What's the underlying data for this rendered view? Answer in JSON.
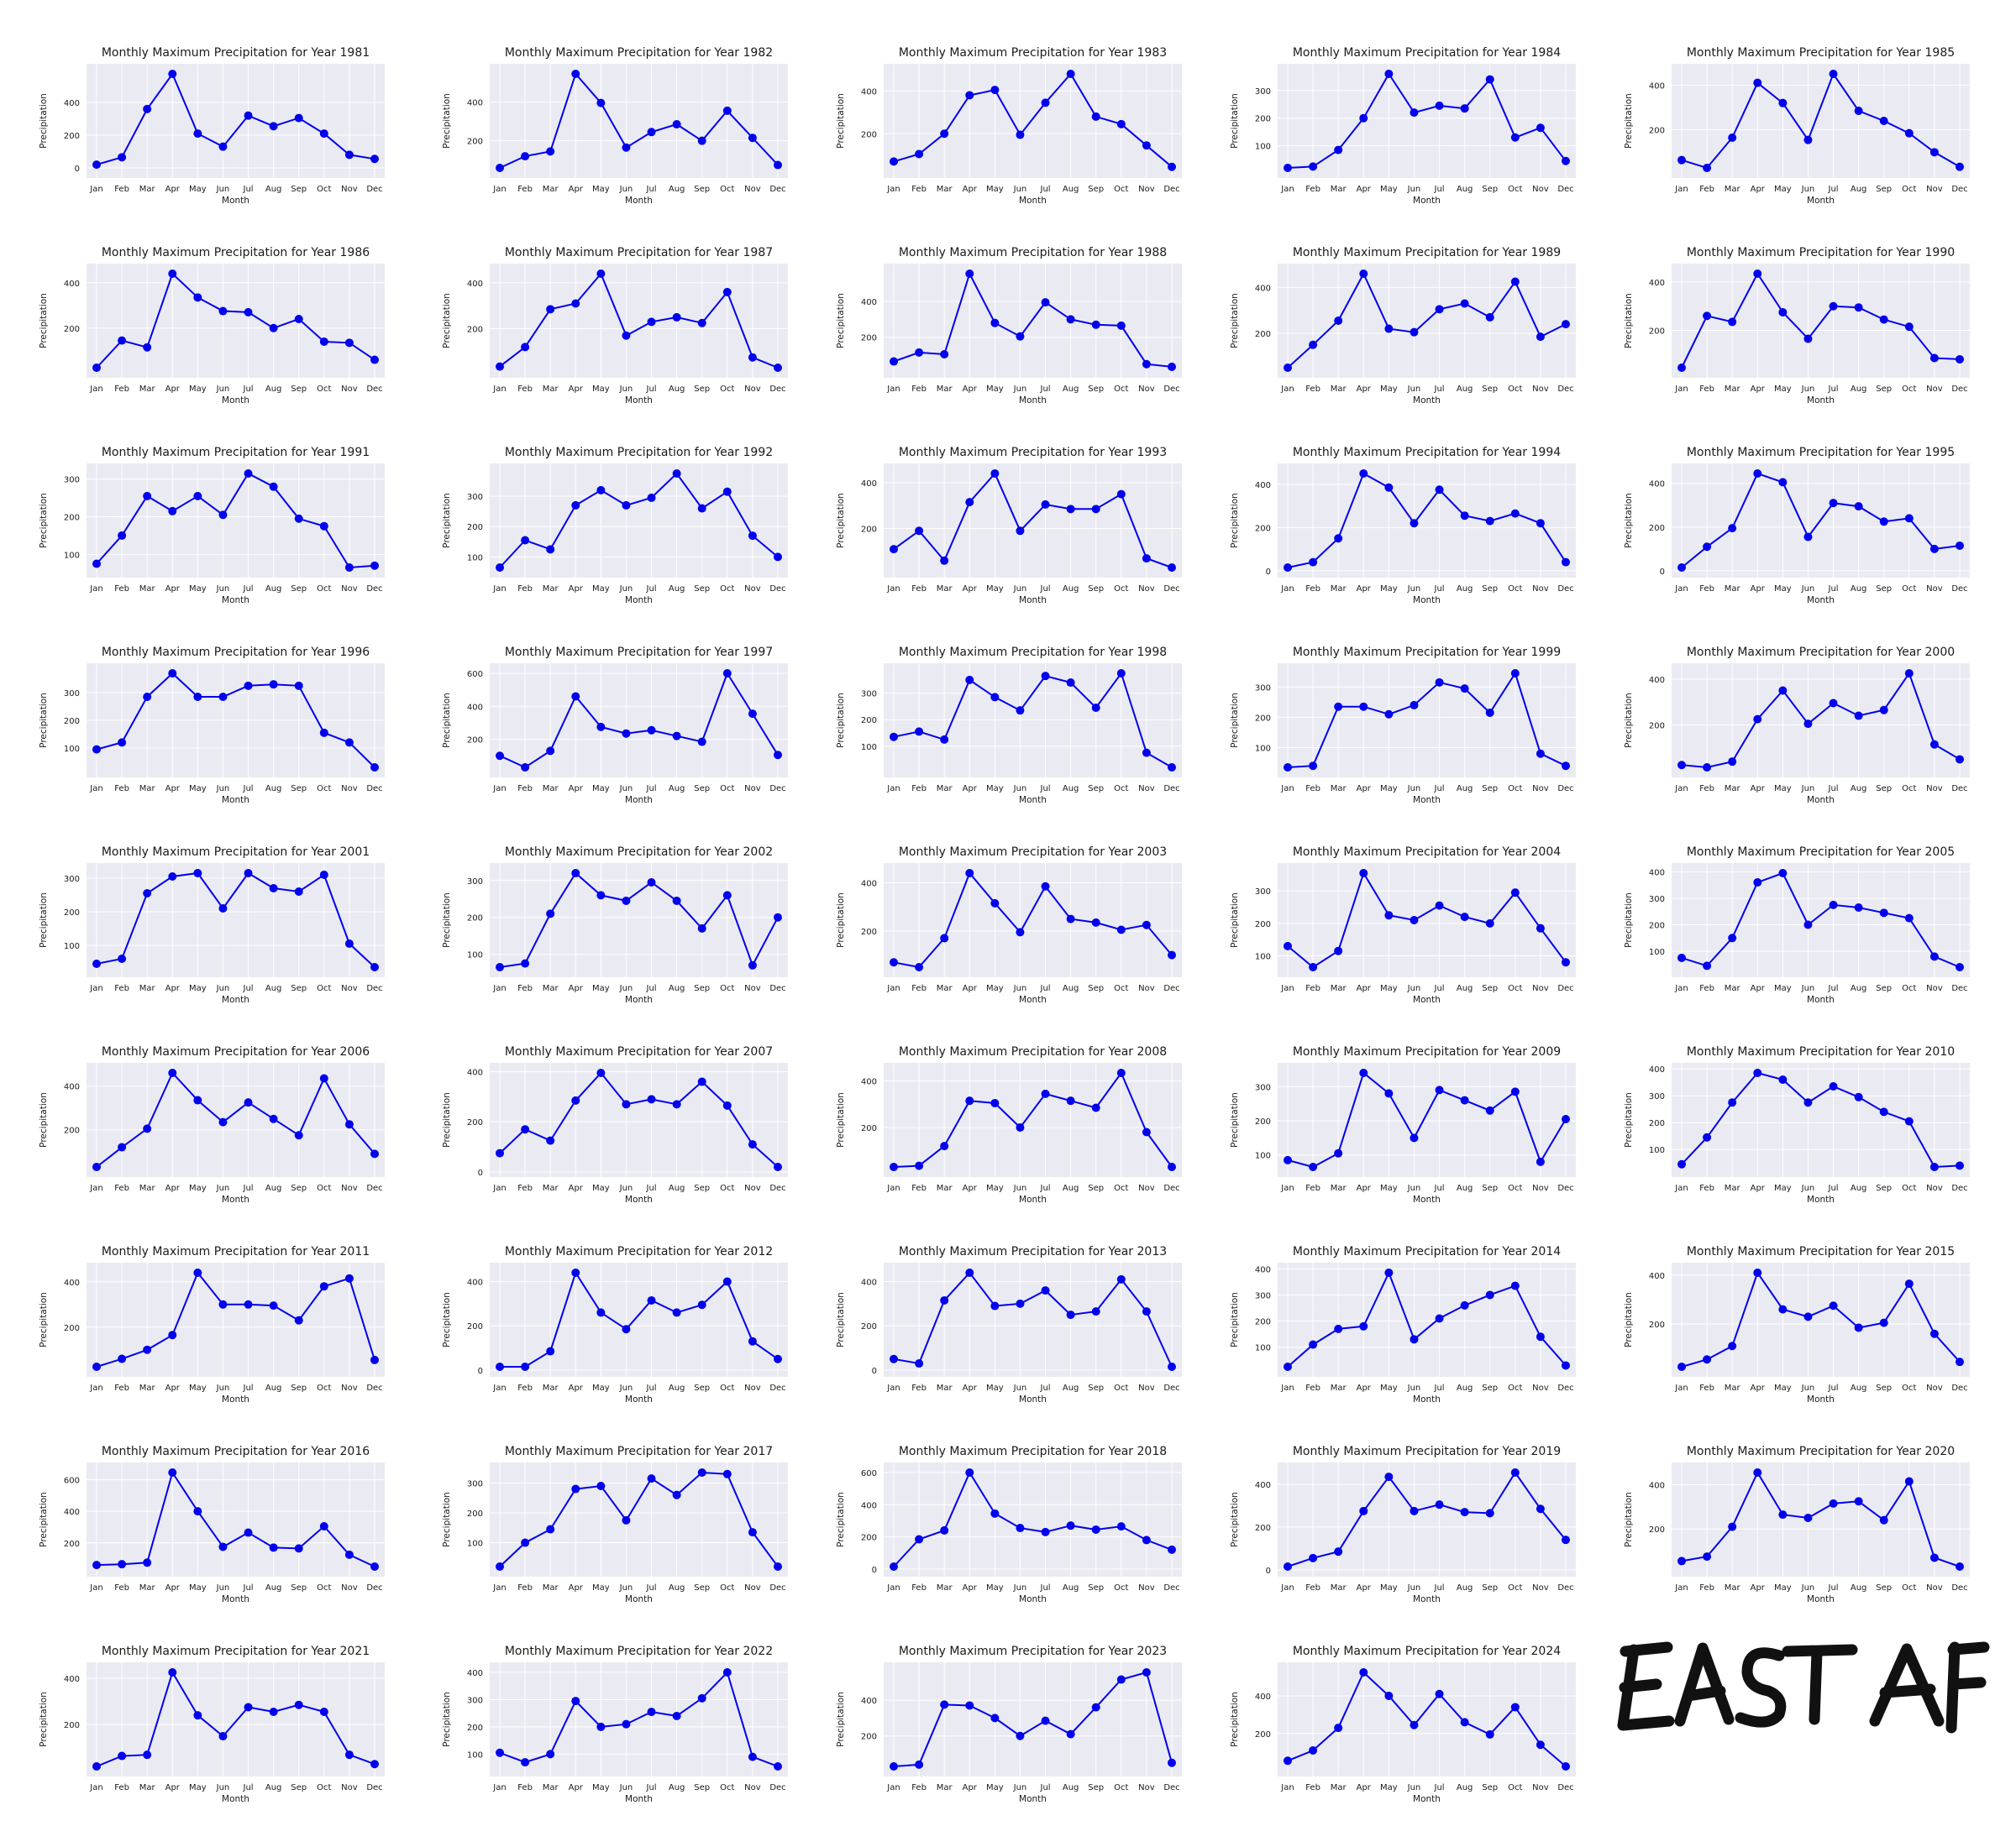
{
  "figure": {
    "handwritten_note": "EAST AF"
  },
  "chart_data": {
    "type": "line",
    "months": [
      "Jan",
      "Feb",
      "Mar",
      "Apr",
      "May",
      "Jun",
      "Jul",
      "Aug",
      "Sep",
      "Oct",
      "Nov",
      "Dec"
    ],
    "xlabel": "Month",
    "ylabel": "Precipitation",
    "title_template": "Monthly Maximum Precipitation for Year {year}",
    "grid": true,
    "series_color": "#0000ee",
    "panel_background": "#eaeaf2",
    "subplots": [
      {
        "year": 1981,
        "title": "Monthly Maximum Precipitation for Year 1981",
        "ylim": [
          0,
          575
        ],
        "yticks": [
          0,
          200,
          400
        ],
        "values": [
          20,
          65,
          360,
          575,
          210,
          130,
          320,
          255,
          305,
          210,
          80,
          55
        ]
      },
      {
        "year": 1982,
        "title": "Monthly Maximum Precipitation for Year 1982",
        "ylim": [
          60,
          545
        ],
        "yticks": [
          200,
          400
        ],
        "values": [
          60,
          120,
          145,
          545,
          395,
          165,
          245,
          285,
          200,
          355,
          215,
          75
        ]
      },
      {
        "year": 1983,
        "title": "Monthly Maximum Precipitation for Year 1983",
        "ylim": [
          40,
          480
        ],
        "yticks": [
          200,
          400
        ],
        "values": [
          70,
          105,
          200,
          380,
          405,
          195,
          345,
          480,
          280,
          245,
          145,
          45
        ]
      },
      {
        "year": 1984,
        "title": "Monthly Maximum Precipitation for Year 1984",
        "ylim": [
          20,
          360
        ],
        "yticks": [
          100,
          200,
          300
        ],
        "values": [
          20,
          25,
          85,
          200,
          360,
          220,
          245,
          235,
          340,
          130,
          165,
          45
        ]
      },
      {
        "year": 1985,
        "title": "Monthly Maximum Precipitation for Year 1985",
        "ylim": [
          30,
          450
        ],
        "yticks": [
          200,
          400
        ],
        "values": [
          65,
          30,
          165,
          410,
          320,
          155,
          450,
          285,
          240,
          185,
          100,
          35
        ]
      },
      {
        "year": 1986,
        "title": "Monthly Maximum Precipitation for Year 1986",
        "ylim": [
          25,
          440
        ],
        "yticks": [
          200,
          400
        ],
        "values": [
          25,
          145,
          115,
          440,
          335,
          275,
          270,
          200,
          240,
          140,
          135,
          60
        ]
      },
      {
        "year": 1987,
        "title": "Monthly Maximum Precipitation for Year 1987",
        "ylim": [
          30,
          440
        ],
        "yticks": [
          200,
          400
        ],
        "values": [
          35,
          120,
          285,
          310,
          440,
          170,
          230,
          250,
          225,
          360,
          75,
          30
        ]
      },
      {
        "year": 1988,
        "title": "Monthly Maximum Precipitation for Year 1988",
        "ylim": [
          30,
          555
        ],
        "yticks": [
          200,
          400
        ],
        "values": [
          65,
          115,
          105,
          555,
          280,
          205,
          395,
          300,
          270,
          265,
          50,
          35
        ]
      },
      {
        "year": 1989,
        "title": "Monthly Maximum Precipitation for Year 1989",
        "ylim": [
          50,
          460
        ],
        "yticks": [
          200,
          400
        ],
        "values": [
          50,
          150,
          255,
          460,
          220,
          205,
          305,
          330,
          270,
          425,
          185,
          240
        ]
      },
      {
        "year": 1990,
        "title": "Monthly Maximum Precipitation for Year 1990",
        "ylim": [
          45,
          435
        ],
        "yticks": [
          200,
          400
        ],
        "values": [
          45,
          260,
          235,
          435,
          275,
          165,
          300,
          295,
          245,
          215,
          85,
          80
        ]
      },
      {
        "year": 1991,
        "title": "Monthly Maximum Precipitation for Year 1991",
        "ylim": [
          65,
          315
        ],
        "yticks": [
          100,
          200,
          300
        ],
        "values": [
          75,
          150,
          255,
          215,
          255,
          205,
          315,
          280,
          195,
          175,
          65,
          70
        ]
      },
      {
        "year": 1992,
        "title": "Monthly Maximum Precipitation for Year 1992",
        "ylim": [
          65,
          375
        ],
        "yticks": [
          100,
          200,
          300
        ],
        "values": [
          65,
          155,
          125,
          270,
          320,
          270,
          295,
          375,
          260,
          315,
          170,
          100
        ]
      },
      {
        "year": 1993,
        "title": "Monthly Maximum Precipitation for Year 1993",
        "ylim": [
          30,
          440
        ],
        "yticks": [
          200,
          400
        ],
        "values": [
          110,
          190,
          60,
          315,
          440,
          190,
          305,
          285,
          285,
          350,
          70,
          30
        ]
      },
      {
        "year": 1994,
        "title": "Monthly Maximum Precipitation for Year 1994",
        "ylim": [
          15,
          450
        ],
        "yticks": [
          0,
          200,
          400
        ],
        "values": [
          15,
          40,
          150,
          450,
          385,
          220,
          375,
          255,
          230,
          265,
          220,
          40
        ]
      },
      {
        "year": 1995,
        "title": "Monthly Maximum Precipitation for Year 1995",
        "ylim": [
          15,
          445
        ],
        "yticks": [
          0,
          200,
          400
        ],
        "values": [
          15,
          110,
          195,
          445,
          405,
          155,
          310,
          295,
          225,
          240,
          100,
          115
        ]
      },
      {
        "year": 1996,
        "title": "Monthly Maximum Precipitation for Year 1996",
        "ylim": [
          30,
          370
        ],
        "yticks": [
          100,
          200,
          300
        ],
        "values": [
          95,
          120,
          285,
          370,
          285,
          285,
          325,
          330,
          325,
          155,
          120,
          30
        ]
      },
      {
        "year": 1997,
        "title": "Monthly Maximum Precipitation for Year 1997",
        "ylim": [
          30,
          600
        ],
        "yticks": [
          200,
          400,
          600
        ],
        "values": [
          100,
          30,
          130,
          460,
          275,
          235,
          255,
          220,
          185,
          600,
          355,
          105
        ]
      },
      {
        "year": 1998,
        "title": "Monthly Maximum Precipitation for Year 1998",
        "ylim": [
          20,
          375
        ],
        "yticks": [
          100,
          200,
          300
        ],
        "values": [
          135,
          155,
          125,
          350,
          285,
          235,
          365,
          340,
          245,
          375,
          75,
          20
        ]
      },
      {
        "year": 1999,
        "title": "Monthly Maximum Precipitation for Year 1999",
        "ylim": [
          35,
          345
        ],
        "yticks": [
          100,
          200,
          300
        ],
        "values": [
          35,
          40,
          235,
          235,
          210,
          240,
          315,
          295,
          215,
          345,
          80,
          40
        ]
      },
      {
        "year": 2000,
        "title": "Monthly Maximum Precipitation for Year 2000",
        "ylim": [
          15,
          425
        ],
        "yticks": [
          200,
          400
        ],
        "values": [
          25,
          15,
          40,
          225,
          350,
          205,
          295,
          240,
          265,
          425,
          115,
          50
        ]
      },
      {
        "year": 2001,
        "title": "Monthly Maximum Precipitation for Year 2001",
        "ylim": [
          35,
          315
        ],
        "yticks": [
          100,
          200,
          300
        ],
        "values": [
          45,
          60,
          255,
          305,
          315,
          210,
          315,
          270,
          260,
          310,
          105,
          35
        ]
      },
      {
        "year": 2002,
        "title": "Monthly Maximum Precipitation for Year 2002",
        "ylim": [
          65,
          320
        ],
        "yticks": [
          100,
          200,
          300
        ],
        "values": [
          65,
          75,
          210,
          320,
          260,
          245,
          295,
          245,
          170,
          260,
          70,
          200
        ]
      },
      {
        "year": 2003,
        "title": "Monthly Maximum Precipitation for Year 2003",
        "ylim": [
          50,
          440
        ],
        "yticks": [
          200,
          400
        ],
        "values": [
          70,
          50,
          170,
          440,
          315,
          195,
          385,
          250,
          235,
          205,
          225,
          100
        ]
      },
      {
        "year": 2004,
        "title": "Monthly Maximum Precipitation for Year 2004",
        "ylim": [
          65,
          355
        ],
        "yticks": [
          100,
          200,
          300
        ],
        "values": [
          130,
          65,
          115,
          355,
          225,
          210,
          255,
          220,
          200,
          295,
          185,
          80
        ]
      },
      {
        "year": 2005,
        "title": "Monthly Maximum Precipitation for Year 2005",
        "ylim": [
          40,
          395
        ],
        "yticks": [
          100,
          200,
          300,
          400
        ],
        "values": [
          75,
          45,
          150,
          360,
          395,
          200,
          275,
          265,
          245,
          225,
          80,
          40
        ]
      },
      {
        "year": 2006,
        "title": "Monthly Maximum Precipitation for Year 2006",
        "ylim": [
          30,
          460
        ],
        "yticks": [
          200,
          400
        ],
        "values": [
          30,
          120,
          205,
          460,
          335,
          235,
          325,
          250,
          175,
          435,
          225,
          90
        ]
      },
      {
        "year": 2007,
        "title": "Monthly Maximum Precipitation for Year 2007",
        "ylim": [
          20,
          395
        ],
        "yticks": [
          0,
          200,
          400
        ],
        "values": [
          75,
          170,
          125,
          285,
          395,
          270,
          290,
          270,
          360,
          265,
          110,
          20
        ]
      },
      {
        "year": 2008,
        "title": "Monthly Maximum Precipitation for Year 2008",
        "ylim": [
          30,
          435
        ],
        "yticks": [
          200,
          400
        ],
        "values": [
          30,
          35,
          120,
          315,
          305,
          200,
          345,
          315,
          285,
          435,
          180,
          30
        ]
      },
      {
        "year": 2009,
        "title": "Monthly Maximum Precipitation for Year 2009",
        "ylim": [
          65,
          340
        ],
        "yticks": [
          100,
          200,
          300
        ],
        "values": [
          85,
          65,
          105,
          340,
          280,
          150,
          290,
          260,
          230,
          285,
          80,
          205
        ]
      },
      {
        "year": 2010,
        "title": "Monthly Maximum Precipitation for Year 2010",
        "ylim": [
          35,
          385
        ],
        "yticks": [
          100,
          200,
          300,
          400
        ],
        "values": [
          45,
          145,
          275,
          385,
          360,
          275,
          335,
          295,
          240,
          205,
          35,
          40
        ]
      },
      {
        "year": 2011,
        "title": "Monthly Maximum Precipitation for Year 2011",
        "ylim": [
          25,
          440
        ],
        "yticks": [
          200,
          400
        ],
        "values": [
          25,
          60,
          100,
          165,
          440,
          300,
          300,
          295,
          230,
          380,
          415,
          55
        ]
      },
      {
        "year": 2012,
        "title": "Monthly Maximum Precipitation for Year 2012",
        "ylim": [
          15,
          440
        ],
        "yticks": [
          0,
          200,
          400
        ],
        "values": [
          15,
          15,
          85,
          440,
          260,
          185,
          315,
          260,
          295,
          400,
          130,
          50
        ]
      },
      {
        "year": 2013,
        "title": "Monthly Maximum Precipitation for Year 2013",
        "ylim": [
          15,
          440
        ],
        "yticks": [
          0,
          200,
          400
        ],
        "values": [
          50,
          30,
          315,
          440,
          290,
          300,
          360,
          250,
          265,
          410,
          265,
          15
        ]
      },
      {
        "year": 2014,
        "title": "Monthly Maximum Precipitation for Year 2014",
        "ylim": [
          25,
          385
        ],
        "yticks": [
          100,
          200,
          300,
          400
        ],
        "values": [
          25,
          110,
          170,
          180,
          385,
          130,
          210,
          260,
          300,
          335,
          140,
          30
        ]
      },
      {
        "year": 2015,
        "title": "Monthly Maximum Precipitation for Year 2015",
        "ylim": [
          25,
          410
        ],
        "yticks": [
          200,
          400
        ],
        "values": [
          25,
          55,
          110,
          410,
          260,
          230,
          275,
          185,
          205,
          365,
          160,
          45
        ]
      },
      {
        "year": 2016,
        "title": "Monthly Maximum Precipitation for Year 2016",
        "ylim": [
          50,
          645
        ],
        "yticks": [
          200,
          400,
          600
        ],
        "values": [
          60,
          65,
          75,
          645,
          400,
          175,
          265,
          170,
          165,
          305,
          125,
          50
        ]
      },
      {
        "year": 2017,
        "title": "Monthly Maximum Precipitation for Year 2017",
        "ylim": [
          20,
          335
        ],
        "yticks": [
          100,
          200,
          300
        ],
        "values": [
          20,
          100,
          145,
          280,
          290,
          175,
          315,
          260,
          335,
          330,
          135,
          20
        ]
      },
      {
        "year": 2018,
        "title": "Monthly Maximum Precipitation for Year 2018",
        "ylim": [
          15,
          600
        ],
        "yticks": [
          0,
          200,
          400,
          600
        ],
        "values": [
          15,
          185,
          240,
          600,
          345,
          255,
          230,
          270,
          245,
          265,
          180,
          120
        ]
      },
      {
        "year": 2019,
        "title": "Monthly Maximum Precipitation for Year 2019",
        "ylim": [
          15,
          455
        ],
        "yticks": [
          0,
          200,
          400
        ],
        "values": [
          15,
          55,
          85,
          275,
          435,
          275,
          305,
          270,
          265,
          455,
          285,
          140
        ]
      },
      {
        "year": 2020,
        "title": "Monthly Maximum Precipitation for Year 2020",
        "ylim": [
          30,
          455
        ],
        "yticks": [
          200,
          400
        ],
        "values": [
          55,
          75,
          210,
          455,
          265,
          250,
          315,
          325,
          240,
          415,
          70,
          30
        ]
      },
      {
        "year": 2021,
        "title": "Monthly Maximum Precipitation for Year 2021",
        "ylim": [
          20,
          425
        ],
        "yticks": [
          200,
          400
        ],
        "values": [
          20,
          65,
          70,
          425,
          240,
          150,
          275,
          255,
          285,
          255,
          70,
          30
        ]
      },
      {
        "year": 2022,
        "title": "Monthly Maximum Precipitation for Year 2022",
        "ylim": [
          55,
          400
        ],
        "yticks": [
          100,
          200,
          300,
          400
        ],
        "values": [
          105,
          70,
          100,
          295,
          200,
          210,
          255,
          240,
          305,
          400,
          90,
          55
        ]
      },
      {
        "year": 2023,
        "title": "Monthly Maximum Precipitation for Year 2023",
        "ylim": [
          30,
          555
        ],
        "yticks": [
          200,
          400
        ],
        "values": [
          30,
          40,
          375,
          370,
          300,
          200,
          285,
          210,
          360,
          515,
          555,
          50
        ]
      },
      {
        "year": 2024,
        "title": "Monthly Maximum Precipitation for Year 2024",
        "ylim": [
          25,
          525
        ],
        "yticks": [
          200,
          400
        ],
        "values": [
          55,
          110,
          230,
          525,
          400,
          245,
          410,
          260,
          195,
          340,
          140,
          25
        ]
      }
    ]
  }
}
